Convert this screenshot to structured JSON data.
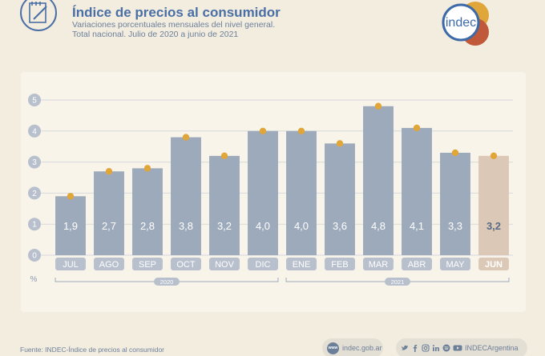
{
  "header": {
    "title": "Índice de precios al consumidor",
    "subtitle_line1": "Variaciones porcentuales mensuales del nivel general.",
    "subtitle_line2": "Total nacional. Julio de 2020 a junio de 2021",
    "logo_text": "indec"
  },
  "chart_data": {
    "type": "bar",
    "title": "",
    "xlabel": "",
    "ylabel": "%",
    "ylim": [
      0,
      5
    ],
    "yticks": [
      0,
      1,
      2,
      3,
      4,
      5
    ],
    "grid": true,
    "categories": [
      "JUL",
      "AGO",
      "SEP",
      "OCT",
      "NOV",
      "DIC",
      "ENE",
      "FEB",
      "MAR",
      "ABR",
      "MAY",
      "JUN"
    ],
    "values": [
      1.9,
      2.7,
      2.8,
      3.8,
      3.2,
      4.0,
      4.0,
      3.6,
      4.8,
      4.1,
      3.3,
      3.2
    ],
    "value_labels": [
      "1,9",
      "2,7",
      "2,8",
      "3,8",
      "3,2",
      "4,0",
      "4,0",
      "3,6",
      "4,8",
      "4,1",
      "3,3",
      "3,2"
    ],
    "year_groups": [
      {
        "label": "2020",
        "start": 0,
        "end": 5
      },
      {
        "label": "2021",
        "start": 6,
        "end": 11
      }
    ],
    "highlight_index": 11,
    "colors": {
      "bar": "#9daabb",
      "bar_highlight": "#dcc8b6",
      "marker": "#e0a63a",
      "label": "#ffffff",
      "label_highlight": "#5a6b85",
      "axis_text": "#8a98ab"
    }
  },
  "footer": {
    "source": "Fuente: INDEC-Índice de precios al consumidor",
    "website": "indec.gob.ar",
    "www_badge": "www",
    "social_handle": "INDECArgentina",
    "social_icons": [
      "twitter-icon",
      "facebook-icon",
      "instagram-icon",
      "linkedin-icon",
      "spotify-icon",
      "youtube-icon"
    ]
  }
}
